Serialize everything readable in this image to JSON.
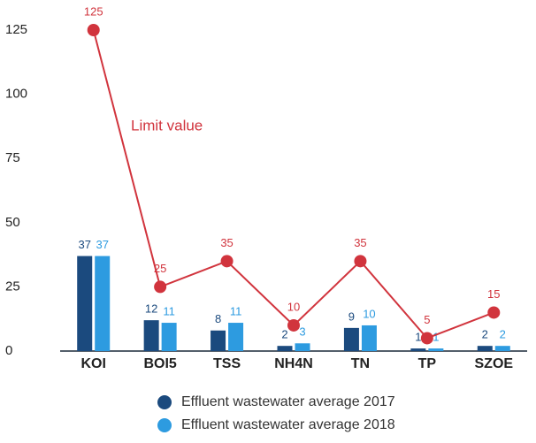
{
  "chart_data": {
    "type": "bar",
    "categories": [
      "KOI",
      "BOI5",
      "TSS",
      "NH4N",
      "TN",
      "TP",
      "SZOE"
    ],
    "series": [
      {
        "name": "Effluent wastewater average 2017",
        "color": "#1b4a7e",
        "values": [
          37,
          12,
          8,
          2,
          9,
          1,
          2
        ]
      },
      {
        "name": "Effluent wastewater average 2018",
        "color": "#2d9be0",
        "values": [
          37,
          11,
          11,
          3,
          10,
          1,
          2
        ]
      },
      {
        "name": "Limit value",
        "type": "line",
        "color": "#d1343d",
        "values": [
          125,
          25,
          35,
          10,
          35,
          5,
          15
        ]
      }
    ],
    "ylim": [
      0,
      125
    ],
    "yticks": [
      0,
      25,
      50,
      75,
      100,
      125
    ],
    "grid": false
  }
}
